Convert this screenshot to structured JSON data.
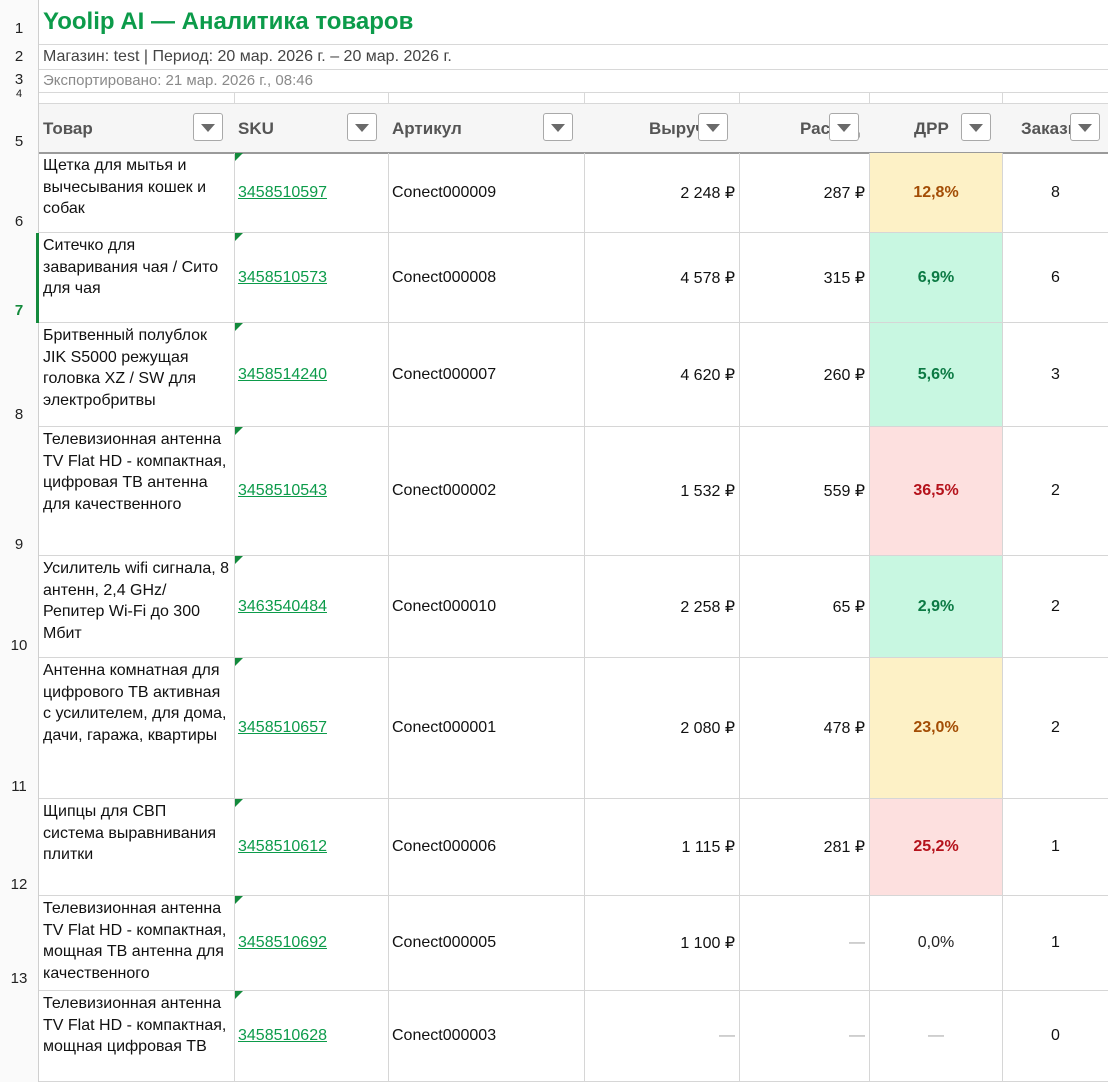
{
  "sheet": {
    "title": "Yoolip AI — Аналитика товаров",
    "period": "Магазин: test | Период: 20 мар. 2026 г. – 20 мар. 2026 г.",
    "exported": "Экспортировано: 21 мар. 2026 г., 08:46"
  },
  "row_numbers": [
    "1",
    "2",
    "3",
    "4",
    "5",
    "6",
    "7",
    "8",
    "9",
    "10",
    "11",
    "12",
    "13"
  ],
  "headers": {
    "product": "Товар",
    "sku": "SKU",
    "article": "Артикул",
    "revenue": "Выручка",
    "spend": "Расход",
    "drr": "ДРР",
    "orders": "Заказы"
  },
  "rows": [
    {
      "name": "Щетка для мытья и вычесывания кошек и собак",
      "sku": "3458510597",
      "article": "Conect000009",
      "revenue": "2 248 ₽",
      "spend": "287 ₽",
      "drr": "12,8%",
      "drr_level": "yellow",
      "orders": "8"
    },
    {
      "name": "Ситечко для заваривания чая / Сито для чая",
      "sku": "3458510573",
      "article": "Conect000008",
      "revenue": "4 578 ₽",
      "spend": "315 ₽",
      "drr": "6,9%",
      "drr_level": "green",
      "orders": "6"
    },
    {
      "name": "Бритвенный полублок JIK S5000 режущая головка XZ / SW для электробритвы",
      "sku": "3458514240",
      "article": "Conect000007",
      "revenue": "4 620 ₽",
      "spend": "260 ₽",
      "drr": "5,6%",
      "drr_level": "green",
      "orders": "3"
    },
    {
      "name": "Телевизионная антенна TV Flat HD - компактная, цифровая ТВ антенна для качественного",
      "sku": "3458510543",
      "article": "Conect000002",
      "revenue": "1 532 ₽",
      "spend": "559 ₽",
      "drr": "36,5%",
      "drr_level": "red",
      "orders": "2"
    },
    {
      "name": "Усилитель wifi сигнала, 8 антенн, 2,4 GHz/ Репитер Wi-Fi до 300 Мбит",
      "sku": "3463540484",
      "article": "Conect000010",
      "revenue": "2 258 ₽",
      "spend": "65 ₽",
      "drr": "2,9%",
      "drr_level": "green",
      "orders": "2"
    },
    {
      "name": "Антенна комнатная для цифрового ТВ активная с усилителем, для дома, дачи, гаража, квартиры",
      "sku": "3458510657",
      "article": "Conect000001",
      "revenue": "2 080 ₽",
      "spend": "478 ₽",
      "drr": "23,0%",
      "drr_level": "yellow",
      "orders": "2"
    },
    {
      "name": "Щипцы для СВП система выравнивания плитки",
      "sku": "3458510612",
      "article": "Conect000006",
      "revenue": "1 115 ₽",
      "spend": "281 ₽",
      "drr": "25,2%",
      "drr_level": "red",
      "orders": "1"
    },
    {
      "name": "Телевизионная антенна TV Flat HD - компактная, мощная ТВ антенна для качественного",
      "sku": "3458510692",
      "article": "Conect000005",
      "revenue": "1 100 ₽",
      "spend": "—",
      "drr": "0,0%",
      "drr_level": "plain",
      "orders": "1"
    },
    {
      "name": "Телевизионная антенна TV Flat HD - компактная, мощная цифровая ТВ",
      "sku": "3458510628",
      "article": "Conect000003",
      "revenue": "—",
      "spend": "—",
      "drr": "—",
      "drr_level": "plain",
      "orders": "0"
    }
  ],
  "colors": {
    "accent": "#0c9b4a",
    "drr_yellow_bg": "#fdf1c6",
    "drr_green_bg": "#c8f7e1",
    "drr_red_bg": "#fde0df"
  },
  "icons": {
    "filter": "dropdown-filter-icon",
    "comment": "comment-marker-icon"
  }
}
